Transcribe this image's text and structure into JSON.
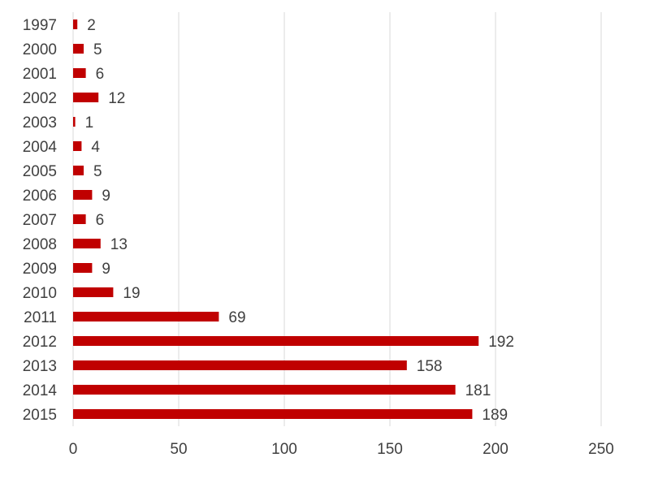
{
  "chart_data": {
    "type": "bar",
    "orientation": "horizontal",
    "categories": [
      "1997",
      "2000",
      "2001",
      "2002",
      "2003",
      "2004",
      "2005",
      "2006",
      "2007",
      "2008",
      "2009",
      "2010",
      "2011",
      "2012",
      "2013",
      "2014",
      "2015"
    ],
    "values": [
      2,
      5,
      6,
      12,
      1,
      4,
      5,
      9,
      6,
      13,
      9,
      19,
      69,
      192,
      158,
      181,
      189
    ],
    "xlim": [
      0,
      250
    ],
    "xticks": [
      0,
      50,
      100,
      150,
      200,
      250
    ],
    "grid": true,
    "data_labels": true,
    "bar_color": "#c00000",
    "grid_color": "#d9d9d9",
    "title": "",
    "xlabel": "",
    "ylabel": ""
  }
}
